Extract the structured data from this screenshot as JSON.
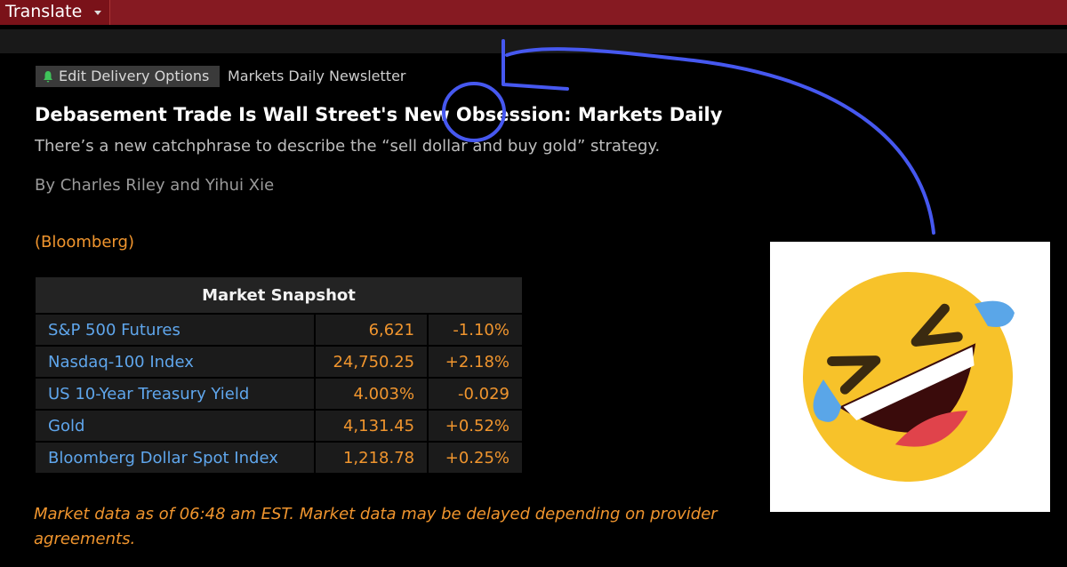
{
  "toolbar": {
    "button": "Translate"
  },
  "article": {
    "tag_button": "Edit Delivery Options",
    "newsletter": "Markets Daily Newsletter",
    "headline": "Debasement Trade Is Wall Street's New Obsession: Markets Daily",
    "subheadline": "There’s a new catchphrase to describe the “sell dollar and buy gold” strategy.",
    "byline": "By Charles Riley and Yihui Xie",
    "source": "(Bloomberg)"
  },
  "snapshot": {
    "title": "Market Snapshot",
    "rows": [
      [
        "S&P 500 Futures",
        "6,621",
        "-1.10%"
      ],
      [
        "Nasdaq-100 Index",
        "24,750.25",
        "+2.18%"
      ],
      [
        "US 10-Year Treasury Yield",
        "4.003%",
        "-0.029"
      ],
      [
        "Gold",
        "4,131.45",
        "+0.52%"
      ],
      [
        "Bloomberg Dollar Spot Index",
        "1,218.78",
        "+0.25%"
      ]
    ]
  },
  "footnote": "Market data as of 06:48 am EST. Market data may be delayed depending on provider agreements."
}
